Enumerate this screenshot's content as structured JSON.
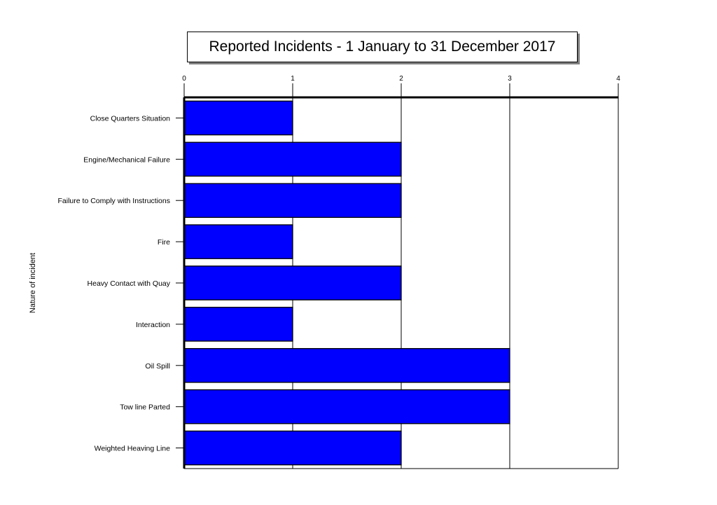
{
  "chart_data": {
    "type": "bar",
    "orientation": "horizontal",
    "title": "Reported Incidents - 1 January to 31 December 2017",
    "ylabel": "Nature of incident",
    "xlabel": "",
    "xlim": [
      0,
      4
    ],
    "xticks": [
      0,
      1,
      2,
      3,
      4
    ],
    "x_axis_position": "top",
    "grid": true,
    "bar_color": "#0000ff",
    "categories": [
      "Close Quarters Situation",
      "Engine/Mechanical Failure",
      "Failure to Comply with Instructions",
      "Fire",
      "Heavy Contact with Quay",
      "Interaction",
      "Oil Spill",
      "Tow line Parted",
      "Weighted Heaving Line"
    ],
    "values": [
      1,
      2,
      2,
      1,
      2,
      1,
      3,
      3,
      2
    ]
  }
}
